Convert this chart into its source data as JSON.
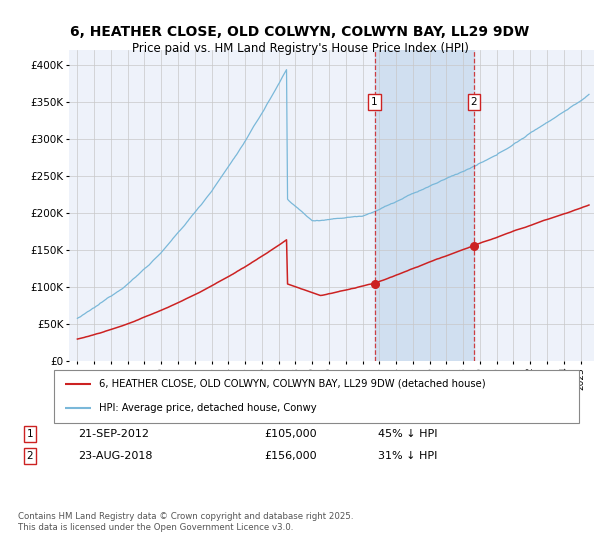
{
  "title_line1": "6, HEATHER CLOSE, OLD COLWYN, COLWYN BAY, LL29 9DW",
  "title_line2": "Price paid vs. HM Land Registry's House Price Index (HPI)",
  "ylabel_ticks": [
    "£0",
    "£50K",
    "£100K",
    "£150K",
    "£200K",
    "£250K",
    "£300K",
    "£350K",
    "£400K"
  ],
  "ytick_values": [
    0,
    50000,
    100000,
    150000,
    200000,
    250000,
    300000,
    350000,
    400000
  ],
  "ylim": [
    0,
    420000
  ],
  "xlim_start": 1994.5,
  "xlim_end": 2025.8,
  "hpi_color": "#7ab8d9",
  "price_color": "#cc2222",
  "marker1_x": 2012.72,
  "marker1_y": 105000,
  "marker2_x": 2018.64,
  "marker2_y": 156000,
  "legend_line1": "6, HEATHER CLOSE, OLD COLWYN, COLWYN BAY, LL29 9DW (detached house)",
  "legend_line2": "HPI: Average price, detached house, Conwy",
  "footer": "Contains HM Land Registry data © Crown copyright and database right 2025.\nThis data is licensed under the Open Government Licence v3.0.",
  "background_color": "#ffffff",
  "plot_bg_color": "#eef2fa",
  "shaded_region_color": "#d0dff0",
  "grid_color": "#c8c8c8"
}
